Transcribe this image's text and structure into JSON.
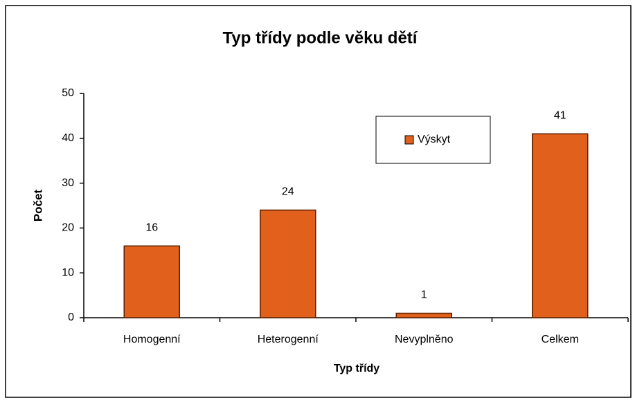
{
  "chart_data": {
    "type": "bar",
    "title": "Typ třídy podle věku dětí",
    "x_label": "Typ třídy",
    "y_label": "Počet",
    "categories": [
      "Homogenní",
      "Heterogenní",
      "Nevyplněno",
      "Celkem"
    ],
    "series": [
      {
        "name": "Výskyt",
        "color": "#e0601c",
        "values": [
          16,
          24,
          1,
          41
        ]
      }
    ],
    "ylim": [
      0,
      50
    ],
    "yticks": [
      0,
      10,
      20,
      30,
      40,
      50
    ],
    "grid": false,
    "legend": "upper right",
    "data_labels": true
  }
}
